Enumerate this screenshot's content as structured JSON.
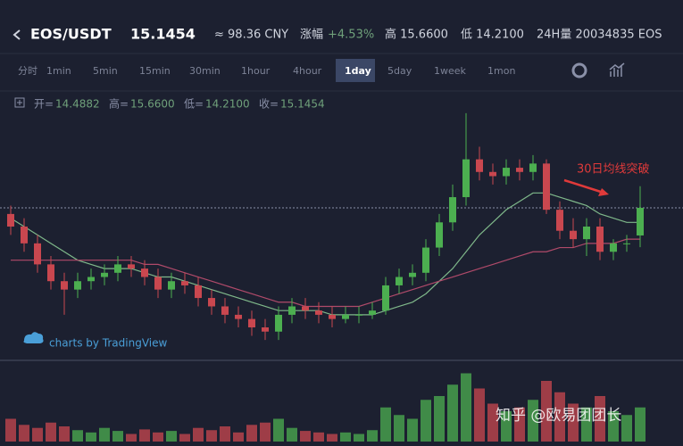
{
  "header": {
    "pair": "EOS/USDT",
    "price": "15.1454",
    "cny": "≈ 98.36 CNY",
    "change_label": "涨幅",
    "change": "+4.53%",
    "high": "高 15.6600",
    "low": "低 14.2100",
    "volume": "24H量 20034835 EOS"
  },
  "tabs": [
    "分时",
    "1min",
    "5min",
    "15min",
    "30min",
    "1hour",
    "4hour",
    "1day",
    "5day",
    "1week",
    "1mon"
  ],
  "active_tab": "1day",
  "ohlc_legend": [
    {
      "label": "开=",
      "value": "14.4882"
    },
    {
      "label": "高=",
      "value": "15.6600"
    },
    {
      "label": "低=",
      "value": "14.2100"
    },
    {
      "label": "收=",
      "value": "15.1454"
    }
  ],
  "attribution": "charts by TradingView",
  "watermark": "知乎 @欧易团团长",
  "chart_data": {
    "type": "candlestick",
    "annotation": "30日均线突破",
    "open": [
      15.0,
      14.7,
      14.3,
      13.8,
      13.4,
      13.2,
      13.4,
      13.5,
      13.6,
      13.8,
      13.7,
      13.5,
      13.2,
      13.4,
      13.3,
      13.0,
      12.8,
      12.6,
      12.5,
      12.3,
      12.2,
      12.6,
      12.8,
      12.7,
      12.6,
      12.5,
      12.6,
      12.6,
      12.7,
      13.3,
      13.5,
      13.6,
      14.2,
      14.8,
      15.4,
      16.3,
      16.0,
      15.9,
      16.1,
      16.0,
      16.2,
      15.1,
      14.6,
      14.4,
      14.7,
      14.1,
      14.3,
      14.4882
    ],
    "high": [
      15.2,
      14.9,
      14.5,
      14.0,
      13.6,
      13.6,
      13.7,
      13.8,
      14.0,
      14.0,
      13.9,
      13.7,
      13.6,
      13.6,
      13.5,
      13.2,
      13.0,
      12.8,
      12.7,
      12.5,
      12.8,
      13.0,
      13.0,
      12.9,
      12.8,
      12.8,
      12.8,
      12.9,
      13.5,
      13.7,
      13.8,
      14.4,
      15.0,
      15.7,
      17.4,
      16.6,
      16.2,
      16.3,
      16.3,
      16.4,
      16.3,
      15.3,
      14.9,
      14.9,
      14.9,
      14.4,
      14.5,
      15.66
    ],
    "low": [
      14.5,
      14.1,
      13.6,
      13.2,
      12.6,
      13.0,
      13.2,
      13.3,
      13.4,
      13.5,
      13.3,
      13.0,
      13.0,
      13.1,
      12.8,
      12.6,
      12.4,
      12.3,
      12.1,
      12.0,
      12.0,
      12.4,
      12.5,
      12.4,
      12.3,
      12.4,
      12.4,
      12.5,
      12.6,
      13.1,
      13.3,
      13.4,
      14.0,
      14.6,
      15.2,
      15.8,
      15.7,
      15.7,
      15.8,
      15.8,
      15.0,
      14.4,
      14.2,
      14.0,
      13.9,
      13.9,
      14.1,
      14.21
    ],
    "close": [
      14.7,
      14.3,
      13.8,
      13.4,
      13.2,
      13.4,
      13.5,
      13.6,
      13.8,
      13.7,
      13.5,
      13.2,
      13.4,
      13.3,
      13.0,
      12.8,
      12.6,
      12.5,
      12.3,
      12.2,
      12.6,
      12.8,
      12.7,
      12.6,
      12.5,
      12.6,
      12.6,
      12.7,
      13.3,
      13.5,
      13.6,
      14.2,
      14.8,
      15.4,
      16.3,
      16.0,
      15.9,
      16.1,
      16.0,
      16.2,
      15.1,
      14.6,
      14.4,
      14.7,
      14.1,
      14.3,
      14.3,
      15.1454
    ],
    "volumes": [
      30,
      22,
      18,
      25,
      20,
      15,
      12,
      18,
      14,
      10,
      16,
      12,
      14,
      10,
      18,
      15,
      20,
      12,
      22,
      25,
      30,
      18,
      14,
      12,
      10,
      12,
      10,
      15,
      45,
      35,
      30,
      55,
      60,
      75,
      90,
      70,
      50,
      40,
      45,
      55,
      80,
      65,
      50,
      45,
      60,
      40,
      35,
      45
    ],
    "ylim": [
      11.6,
      17.8
    ],
    "vlim": [
      0,
      100
    ],
    "up_color": "#4caf50",
    "down_color": "#c9474f",
    "ma_lines": [
      {
        "color": "#7fb88a",
        "values": [
          14.9,
          14.7,
          14.5,
          14.3,
          14.1,
          13.9,
          13.8,
          13.7,
          13.7,
          13.7,
          13.6,
          13.5,
          13.5,
          13.4,
          13.3,
          13.2,
          13.1,
          13.0,
          12.9,
          12.8,
          12.7,
          12.7,
          12.7,
          12.7,
          12.6,
          12.6,
          12.6,
          12.6,
          12.7,
          12.8,
          12.9,
          13.1,
          13.4,
          13.7,
          14.1,
          14.5,
          14.8,
          15.1,
          15.3,
          15.5,
          15.5,
          15.4,
          15.3,
          15.2,
          15.0,
          14.9,
          14.8,
          14.8
        ]
      },
      {
        "color": "#b04a6a",
        "values": [
          13.9,
          13.9,
          13.9,
          13.9,
          13.9,
          13.9,
          13.9,
          13.9,
          13.9,
          13.9,
          13.8,
          13.8,
          13.7,
          13.6,
          13.5,
          13.4,
          13.3,
          13.2,
          13.1,
          13.0,
          12.9,
          12.9,
          12.8,
          12.8,
          12.8,
          12.8,
          12.8,
          12.9,
          13.0,
          13.1,
          13.2,
          13.3,
          13.4,
          13.5,
          13.6,
          13.7,
          13.8,
          13.9,
          14.0,
          14.1,
          14.1,
          14.2,
          14.2,
          14.3,
          14.3,
          14.3,
          14.4,
          14.4
        ]
      }
    ]
  }
}
